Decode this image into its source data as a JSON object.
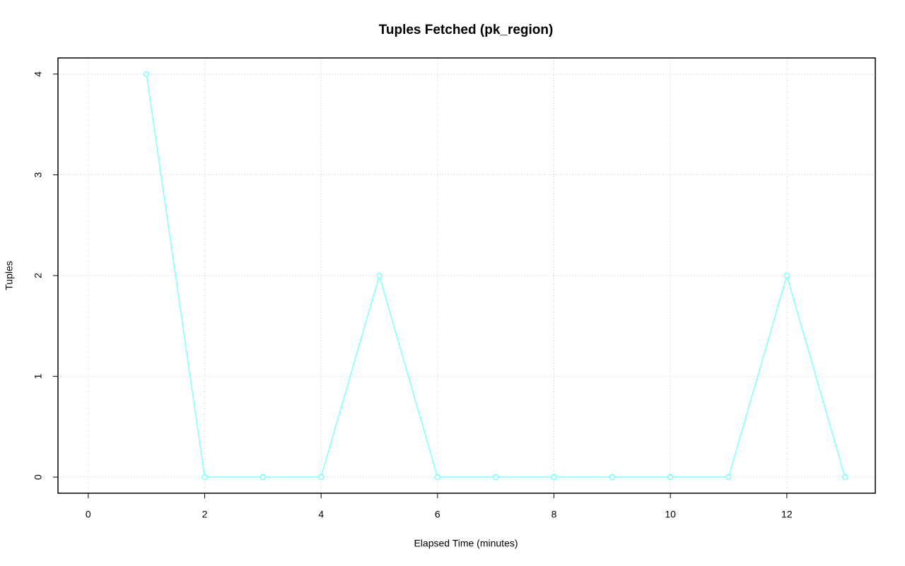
{
  "chart_data": {
    "type": "line",
    "title": "Tuples Fetched (pk_region)",
    "xlabel": "Elapsed Time (minutes)",
    "ylabel": "Tuples",
    "x": [
      1,
      2,
      3,
      4,
      5,
      6,
      7,
      8,
      9,
      10,
      11,
      12,
      13
    ],
    "series": [
      {
        "color": "#7fffff",
        "values": [
          4,
          0,
          0,
          0,
          2,
          0,
          0,
          0,
          0,
          0,
          0,
          2,
          0
        ]
      }
    ],
    "xlim": [
      -0.52,
      13.52
    ],
    "xticks": [
      0,
      2,
      4,
      6,
      8,
      10,
      12
    ],
    "ylim": [
      -0.16,
      4.16
    ],
    "yticks": [
      0,
      1,
      2,
      3,
      4
    ],
    "grid": true
  }
}
